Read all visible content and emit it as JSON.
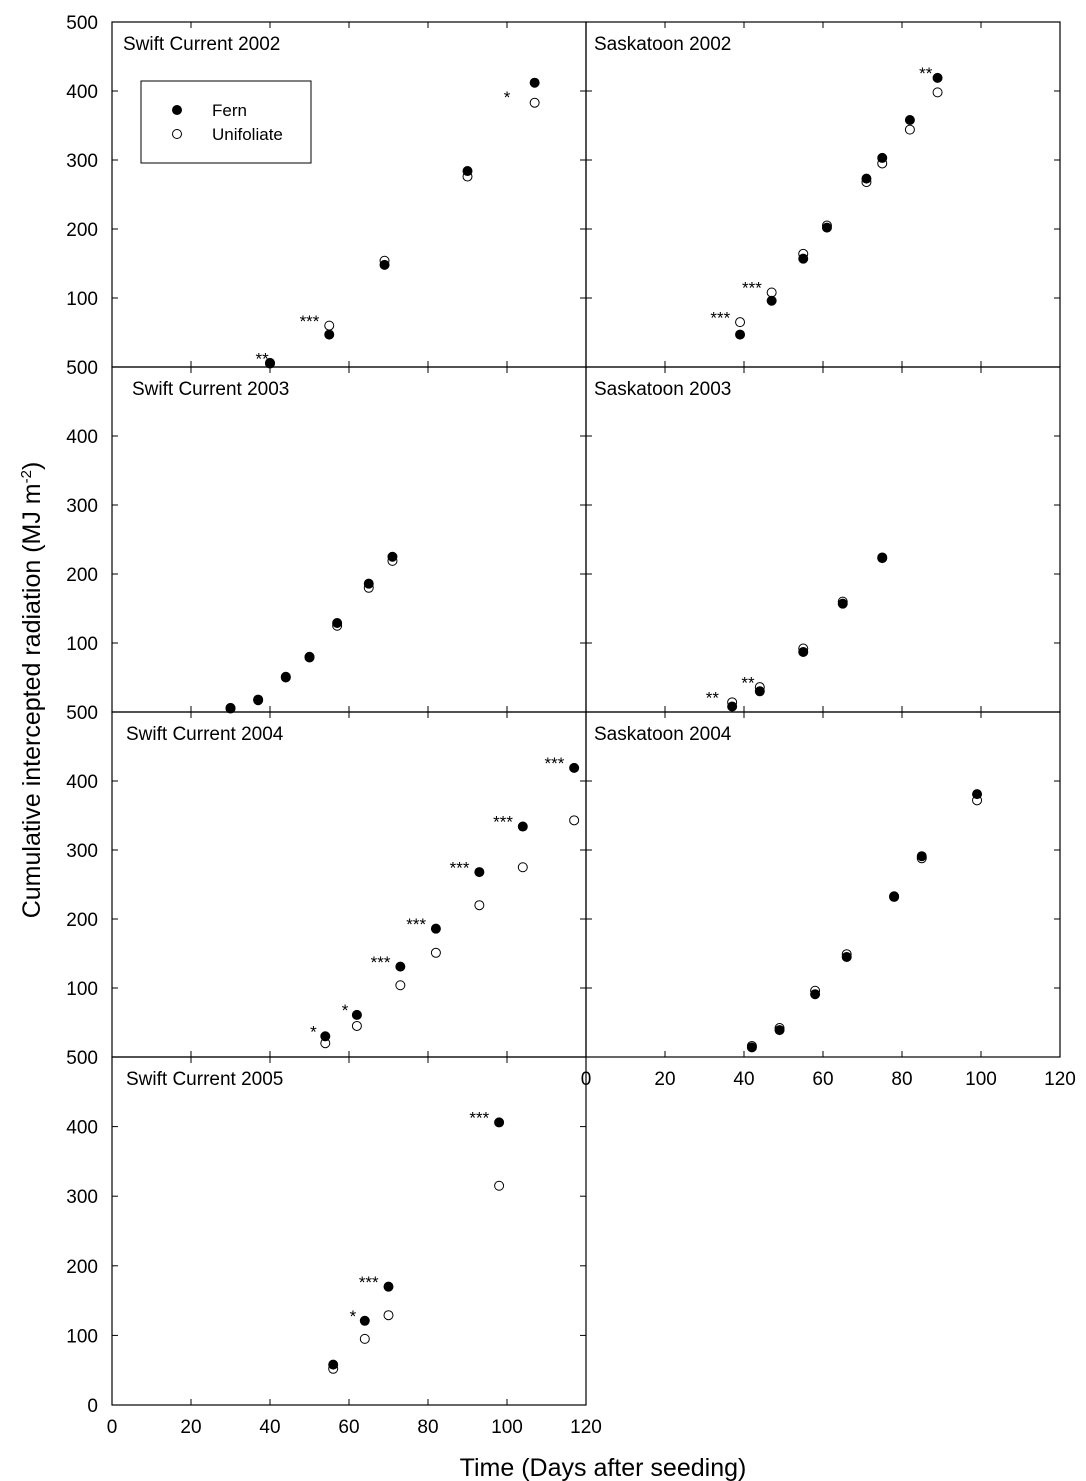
{
  "figure": {
    "ylabel": "Cumulative intercepted radiation (MJ m",
    "ylabel_sup": "-2",
    "ylabel_end": ")",
    "xlabel": "Time (Days after seeding)",
    "legend": {
      "fern": "Fern",
      "unifoliate": "Unifoliate"
    },
    "colors": {
      "fern_fill": "#000000",
      "unifoliate_fill": "#ffffff",
      "marker_stroke": "#000000"
    }
  },
  "chart_data": [
    {
      "type": "scatter",
      "title": "Swift Current 2002",
      "xlim": [
        0,
        120
      ],
      "ylim": [
        0,
        500
      ],
      "yticks": [
        "100",
        "200",
        "300",
        "400",
        "500"
      ],
      "legend": "top-left",
      "series": [
        {
          "name": "Fern",
          "x": [
            40,
            55,
            69,
            90,
            107
          ],
          "y": [
            5,
            47,
            148,
            284,
            412
          ]
        },
        {
          "name": "Unifoliate",
          "x": [
            40,
            55,
            69,
            90,
            107
          ],
          "y": [
            6,
            60,
            154,
            276,
            383
          ]
        }
      ],
      "annotations": [
        {
          "text": "**",
          "x": 38,
          "y": 12
        },
        {
          "text": "***",
          "x": 50,
          "y": 67
        },
        {
          "text": "*",
          "x": 100,
          "y": 391
        }
      ]
    },
    {
      "type": "scatter",
      "title": "Saskatoon 2002",
      "xlim": [
        0,
        120
      ],
      "ylim": [
        0,
        500
      ],
      "yticks": [],
      "series": [
        {
          "name": "Fern",
          "x": [
            39,
            47,
            55,
            61,
            71,
            75,
            82,
            89
          ],
          "y": [
            47,
            96,
            157,
            202,
            273,
            303,
            358,
            419
          ]
        },
        {
          "name": "Unifoliate",
          "x": [
            39,
            47,
            55,
            61,
            71,
            75,
            82,
            89
          ],
          "y": [
            65,
            108,
            164,
            205,
            268,
            295,
            344,
            398
          ]
        }
      ],
      "annotations": [
        {
          "text": "***",
          "x": 34,
          "y": 72
        },
        {
          "text": "***",
          "x": 42,
          "y": 115
        },
        {
          "text": "**",
          "x": 86,
          "y": 426
        }
      ]
    },
    {
      "type": "scatter",
      "title": "Swift Current 2003",
      "xlim": [
        0,
        120
      ],
      "ylim": [
        0,
        500
      ],
      "yticks": [
        "100",
        "200",
        "300",
        "400",
        "500"
      ],
      "series": [
        {
          "name": "Fern",
          "x": [
            30,
            37,
            44,
            50,
            57,
            65,
            71
          ],
          "y": [
            5,
            17,
            50,
            79,
            129,
            186,
            225
          ]
        },
        {
          "name": "Unifoliate",
          "x": [
            30,
            37,
            44,
            50,
            57,
            65,
            71
          ],
          "y": [
            6,
            18,
            51,
            80,
            125,
            180,
            219
          ]
        }
      ]
    },
    {
      "type": "scatter",
      "title": "Saskatoon 2003",
      "xlim": [
        0,
        120
      ],
      "ylim": [
        0,
        500
      ],
      "yticks": [],
      "series": [
        {
          "name": "Fern",
          "x": [
            37,
            44,
            55,
            65,
            75
          ],
          "y": [
            8,
            30,
            87,
            157,
            224
          ]
        },
        {
          "name": "Unifoliate",
          "x": [
            37,
            44,
            55,
            65,
            75
          ],
          "y": [
            14,
            36,
            92,
            160,
            223
          ]
        }
      ],
      "annotations": [
        {
          "text": "**",
          "x": 32,
          "y": 21
        },
        {
          "text": "**",
          "x": 41,
          "y": 43
        }
      ]
    },
    {
      "type": "scatter",
      "title": "Swift Current 2004",
      "xlim": [
        0,
        120
      ],
      "ylim": [
        0,
        500
      ],
      "yticks": [
        "100",
        "200",
        "300",
        "400",
        "500"
      ],
      "series": [
        {
          "name": "Fern",
          "x": [
            54,
            62,
            73,
            82,
            93,
            104,
            117
          ],
          "y": [
            30,
            61,
            131,
            186,
            268,
            334,
            419
          ]
        },
        {
          "name": "Unifoliate",
          "x": [
            54,
            62,
            73,
            82,
            93,
            104,
            117
          ],
          "y": [
            20,
            45,
            104,
            151,
            220,
            275,
            343
          ]
        }
      ],
      "annotations": [
        {
          "text": "*",
          "x": 51,
          "y": 37
        },
        {
          "text": "*",
          "x": 59,
          "y": 68
        },
        {
          "text": "***",
          "x": 68,
          "y": 138
        },
        {
          "text": "***",
          "x": 77,
          "y": 193
        },
        {
          "text": "***",
          "x": 88,
          "y": 275
        },
        {
          "text": "***",
          "x": 99,
          "y": 341
        },
        {
          "text": "***",
          "x": 112,
          "y": 426
        }
      ]
    },
    {
      "type": "scatter",
      "title": "Saskatoon 2004",
      "xlim": [
        0,
        120
      ],
      "ylim": [
        0,
        500
      ],
      "yticks": [],
      "xticks": [
        "0",
        "20",
        "40",
        "60",
        "80",
        "100",
        "120"
      ],
      "series": [
        {
          "name": "Fern",
          "x": [
            42,
            49,
            58,
            66,
            78,
            85,
            99
          ],
          "y": [
            14,
            39,
            91,
            145,
            233,
            291,
            381
          ]
        },
        {
          "name": "Unifoliate",
          "x": [
            42,
            49,
            58,
            66,
            78,
            85,
            99
          ],
          "y": [
            16,
            42,
            96,
            149,
            232,
            288,
            372
          ]
        }
      ]
    },
    {
      "type": "scatter",
      "title": "Swift Current 2005",
      "xlim": [
        0,
        120
      ],
      "ylim": [
        0,
        500
      ],
      "yticks": [
        "0",
        "100",
        "200",
        "300",
        "400",
        "500"
      ],
      "xticks": [
        "0",
        "20",
        "40",
        "60",
        "80",
        "100",
        "120"
      ],
      "series": [
        {
          "name": "Fern",
          "x": [
            56,
            64,
            70,
            98
          ],
          "y": [
            58,
            121,
            170,
            406
          ]
        },
        {
          "name": "Unifoliate",
          "x": [
            56,
            64,
            70,
            98
          ],
          "y": [
            52,
            95,
            129,
            315
          ]
        }
      ],
      "annotations": [
        {
          "text": "*",
          "x": 61,
          "y": 128
        },
        {
          "text": "***",
          "x": 65,
          "y": 177
        },
        {
          "text": "***",
          "x": 93,
          "y": 413
        }
      ]
    }
  ]
}
